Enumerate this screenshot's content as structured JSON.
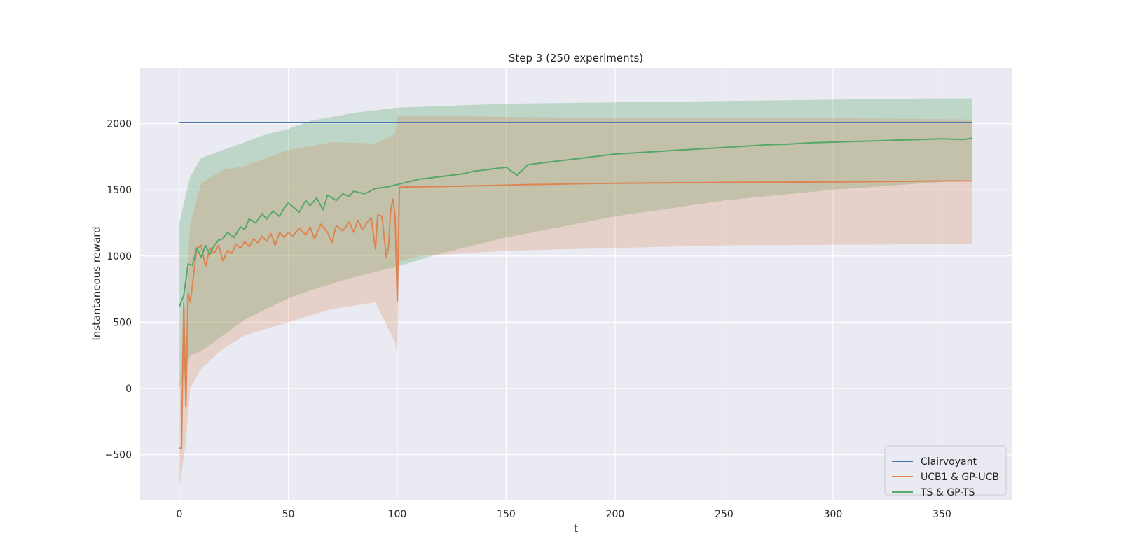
{
  "chart_data": {
    "type": "line",
    "title": "Step 3 (250 experiments)",
    "xlabel": "t",
    "ylabel": "Instantaneous reward",
    "xlim": [
      -18,
      382
    ],
    "ylim": [
      -840,
      2420
    ],
    "xticks": [
      0,
      50,
      100,
      150,
      200,
      250,
      300,
      350
    ],
    "yticks": [
      -500,
      0,
      500,
      1000,
      1500,
      2000
    ],
    "ytick_labels": [
      "−500",
      "0",
      "500",
      "1000",
      "1500",
      "2000"
    ],
    "grid": true,
    "background": "#eaeaf2",
    "legend_position": "lower-right",
    "series": [
      {
        "name": "Clairvoyant",
        "color": "#4c72b0",
        "points": [
          [
            0,
            2008
          ],
          [
            364,
            2008
          ]
        ]
      },
      {
        "name": "UCB1 & GP-UCB",
        "color": "#dd8452",
        "points": [
          [
            0,
            -450
          ],
          [
            1,
            -450
          ],
          [
            2,
            650
          ],
          [
            3,
            -140
          ],
          [
            4,
            720
          ],
          [
            5,
            650
          ],
          [
            6,
            780
          ],
          [
            8,
            1060
          ],
          [
            10,
            1080
          ],
          [
            12,
            920
          ],
          [
            14,
            1060
          ],
          [
            16,
            1020
          ],
          [
            18,
            1080
          ],
          [
            20,
            960
          ],
          [
            22,
            1040
          ],
          [
            24,
            1020
          ],
          [
            26,
            1090
          ],
          [
            28,
            1060
          ],
          [
            30,
            1110
          ],
          [
            32,
            1070
          ],
          [
            34,
            1130
          ],
          [
            36,
            1100
          ],
          [
            38,
            1150
          ],
          [
            40,
            1110
          ],
          [
            42,
            1170
          ],
          [
            44,
            1080
          ],
          [
            46,
            1180
          ],
          [
            48,
            1140
          ],
          [
            50,
            1180
          ],
          [
            52,
            1150
          ],
          [
            55,
            1210
          ],
          [
            58,
            1160
          ],
          [
            60,
            1220
          ],
          [
            62,
            1130
          ],
          [
            65,
            1240
          ],
          [
            68,
            1180
          ],
          [
            70,
            1100
          ],
          [
            72,
            1230
          ],
          [
            75,
            1190
          ],
          [
            78,
            1260
          ],
          [
            80,
            1180
          ],
          [
            82,
            1270
          ],
          [
            84,
            1200
          ],
          [
            86,
            1250
          ],
          [
            88,
            1290
          ],
          [
            90,
            1050
          ],
          [
            91,
            1310
          ],
          [
            93,
            1300
          ],
          [
            95,
            990
          ],
          [
            96,
            1060
          ],
          [
            97,
            1350
          ],
          [
            98,
            1430
          ],
          [
            99,
            1300
          ],
          [
            100,
            660
          ],
          [
            101,
            1520
          ],
          [
            110,
            1523
          ],
          [
            120,
            1525
          ],
          [
            130,
            1528
          ],
          [
            140,
            1532
          ],
          [
            150,
            1535
          ],
          [
            160,
            1540
          ],
          [
            170,
            1542
          ],
          [
            180,
            1545
          ],
          [
            190,
            1548
          ],
          [
            200,
            1550
          ],
          [
            220,
            1552
          ],
          [
            240,
            1555
          ],
          [
            260,
            1557
          ],
          [
            280,
            1558
          ],
          [
            300,
            1560
          ],
          [
            320,
            1562
          ],
          [
            340,
            1565
          ],
          [
            355,
            1567
          ],
          [
            364,
            1568
          ]
        ]
      },
      {
        "name": "TS & GP-TS",
        "color": "#55a868",
        "points": [
          [
            0,
            620
          ],
          [
            2,
            700
          ],
          [
            4,
            940
          ],
          [
            6,
            930
          ],
          [
            8,
            1060
          ],
          [
            10,
            990
          ],
          [
            12,
            1080
          ],
          [
            14,
            1010
          ],
          [
            16,
            1080
          ],
          [
            18,
            1120
          ],
          [
            20,
            1130
          ],
          [
            22,
            1180
          ],
          [
            25,
            1140
          ],
          [
            28,
            1220
          ],
          [
            30,
            1200
          ],
          [
            32,
            1280
          ],
          [
            35,
            1250
          ],
          [
            38,
            1320
          ],
          [
            40,
            1280
          ],
          [
            43,
            1340
          ],
          [
            46,
            1300
          ],
          [
            48,
            1360
          ],
          [
            50,
            1400
          ],
          [
            53,
            1360
          ],
          [
            55,
            1330
          ],
          [
            58,
            1420
          ],
          [
            60,
            1380
          ],
          [
            63,
            1440
          ],
          [
            66,
            1350
          ],
          [
            68,
            1460
          ],
          [
            72,
            1420
          ],
          [
            75,
            1470
          ],
          [
            78,
            1450
          ],
          [
            80,
            1490
          ],
          [
            85,
            1470
          ],
          [
            90,
            1510
          ],
          [
            95,
            1520
          ],
          [
            100,
            1540
          ],
          [
            105,
            1560
          ],
          [
            110,
            1580
          ],
          [
            115,
            1590
          ],
          [
            120,
            1600
          ],
          [
            125,
            1610
          ],
          [
            130,
            1620
          ],
          [
            135,
            1640
          ],
          [
            140,
            1650
          ],
          [
            145,
            1660
          ],
          [
            150,
            1670
          ],
          [
            155,
            1610
          ],
          [
            160,
            1690
          ],
          [
            165,
            1700
          ],
          [
            170,
            1710
          ],
          [
            175,
            1720
          ],
          [
            180,
            1730
          ],
          [
            185,
            1740
          ],
          [
            190,
            1750
          ],
          [
            195,
            1760
          ],
          [
            200,
            1770
          ],
          [
            210,
            1780
          ],
          [
            220,
            1790
          ],
          [
            230,
            1800
          ],
          [
            240,
            1810
          ],
          [
            250,
            1820
          ],
          [
            260,
            1830
          ],
          [
            270,
            1840
          ],
          [
            280,
            1845
          ],
          [
            290,
            1855
          ],
          [
            300,
            1860
          ],
          [
            310,
            1865
          ],
          [
            320,
            1870
          ],
          [
            330,
            1875
          ],
          [
            340,
            1880
          ],
          [
            350,
            1885
          ],
          [
            360,
            1880
          ],
          [
            364,
            1890
          ]
        ]
      }
    ],
    "bands": [
      {
        "series": "TS & GP-TS",
        "color": "#55a868",
        "opacity": 0.3,
        "upper": [
          [
            0,
            1250
          ],
          [
            5,
            1600
          ],
          [
            10,
            1740
          ],
          [
            20,
            1800
          ],
          [
            30,
            1860
          ],
          [
            40,
            1920
          ],
          [
            50,
            1960
          ],
          [
            60,
            2020
          ],
          [
            80,
            2080
          ],
          [
            100,
            2120
          ],
          [
            150,
            2150
          ],
          [
            200,
            2160
          ],
          [
            250,
            2170
          ],
          [
            300,
            2180
          ],
          [
            350,
            2190
          ],
          [
            364,
            2190
          ]
        ],
        "lower": [
          [
            0,
            0
          ],
          [
            5,
            250
          ],
          [
            10,
            280
          ],
          [
            20,
            400
          ],
          [
            30,
            520
          ],
          [
            40,
            600
          ],
          [
            50,
            680
          ],
          [
            60,
            740
          ],
          [
            80,
            840
          ],
          [
            100,
            920
          ],
          [
            120,
            1020
          ],
          [
            150,
            1140
          ],
          [
            200,
            1300
          ],
          [
            250,
            1420
          ],
          [
            300,
            1500
          ],
          [
            350,
            1560
          ],
          [
            364,
            1580
          ]
        ]
      },
      {
        "series": "UCB1 & GP-UCB",
        "color": "#dd8452",
        "opacity": 0.25,
        "upper": [
          [
            0,
            0
          ],
          [
            3,
            720
          ],
          [
            5,
            1250
          ],
          [
            10,
            1550
          ],
          [
            20,
            1650
          ],
          [
            30,
            1680
          ],
          [
            50,
            1800
          ],
          [
            70,
            1860
          ],
          [
            90,
            1850
          ],
          [
            99,
            1920
          ],
          [
            100,
            2060
          ],
          [
            150,
            2050
          ],
          [
            200,
            2040
          ],
          [
            250,
            2040
          ],
          [
            300,
            2040
          ],
          [
            364,
            2030
          ]
        ],
        "lower": [
          [
            0,
            -760
          ],
          [
            3,
            -400
          ],
          [
            5,
            0
          ],
          [
            10,
            150
          ],
          [
            20,
            300
          ],
          [
            30,
            400
          ],
          [
            50,
            500
          ],
          [
            70,
            600
          ],
          [
            90,
            650
          ],
          [
            99,
            350
          ],
          [
            100,
            250
          ],
          [
            101,
            960
          ],
          [
            110,
            1000
          ],
          [
            150,
            1040
          ],
          [
            200,
            1060
          ],
          [
            250,
            1080
          ],
          [
            300,
            1085
          ],
          [
            364,
            1090
          ]
        ]
      }
    ]
  }
}
